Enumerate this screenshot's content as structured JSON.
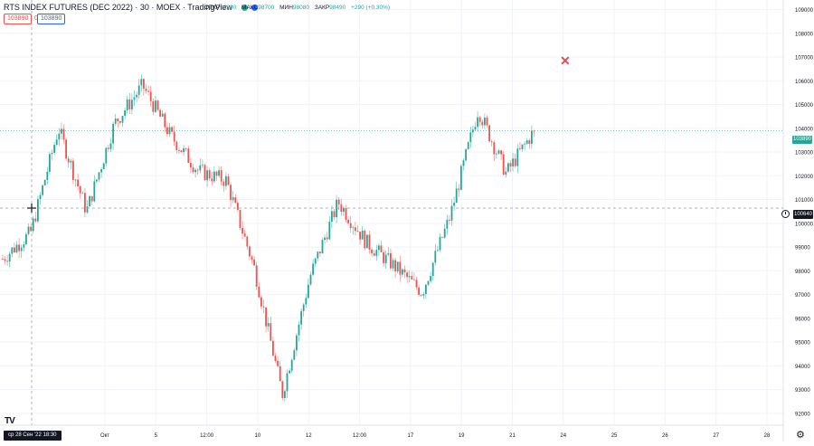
{
  "header": {
    "symbol": "RTS INDEX FUTURES (DEC 2022)",
    "interval": "30",
    "exchange": "MOEX",
    "source": "TradingView",
    "ohlc": [
      {
        "label": "ОТКР",
        "value": "98230"
      },
      {
        "label": "МАКС",
        "value": "98700"
      },
      {
        "label": "МИН",
        "value": "98080"
      },
      {
        "label": "ЗАКР",
        "value": "98490"
      }
    ],
    "change": "+290 (+0.30%)",
    "sell_price": "103890",
    "spread": "0",
    "buy_price": "103890"
  },
  "crosshair": {
    "date_label": "ср 28 Сен '22   18:30",
    "price_label": "100640"
  },
  "last_price_label": "103890",
  "colors": {
    "up": "#26a69a",
    "down": "#ef5350",
    "grid": "#f0f3fa",
    "accent": "#2962ff"
  },
  "chart_data": {
    "type": "candlestick",
    "ylim": [
      91500,
      109400
    ],
    "y_ticks": [
      92000,
      93000,
      94000,
      95000,
      96000,
      97000,
      98000,
      99000,
      100000,
      101000,
      102000,
      103000,
      104000,
      105000,
      106000,
      107000,
      108000,
      109000
    ],
    "x_ticks": [
      "Окт",
      "5",
      "12:00",
      "10",
      "12",
      "12:00",
      "17",
      "19",
      "21",
      "24",
      "25",
      "26",
      "27",
      "28"
    ],
    "close_path": [
      [
        "Sep 28",
        98500
      ],
      [
        "Sep 29",
        99600
      ],
      [
        "Sep 30",
        104000
      ],
      [
        "Sep 30 late",
        100500
      ],
      [
        "Oct 3",
        104200
      ],
      [
        "Oct 4",
        105800
      ],
      [
        "Oct 5",
        103700
      ],
      [
        "Oct 6",
        102200
      ],
      [
        "Oct 7",
        101800
      ],
      [
        "Oct 10",
        98100
      ],
      [
        "Oct 10 mid",
        92800
      ],
      [
        "Oct 11",
        97800
      ],
      [
        "Oct 12",
        100900
      ],
      [
        "Oct 13",
        99200
      ],
      [
        "Oct 14",
        98200
      ],
      [
        "Oct 14 late",
        97100
      ],
      [
        "Oct 17",
        100300
      ],
      [
        "Oct 18",
        104800
      ],
      [
        "Oct 19",
        102100
      ],
      [
        "Oct 20",
        103900
      ]
    ],
    "last_price": 103890,
    "crosshair_price": 100640
  }
}
